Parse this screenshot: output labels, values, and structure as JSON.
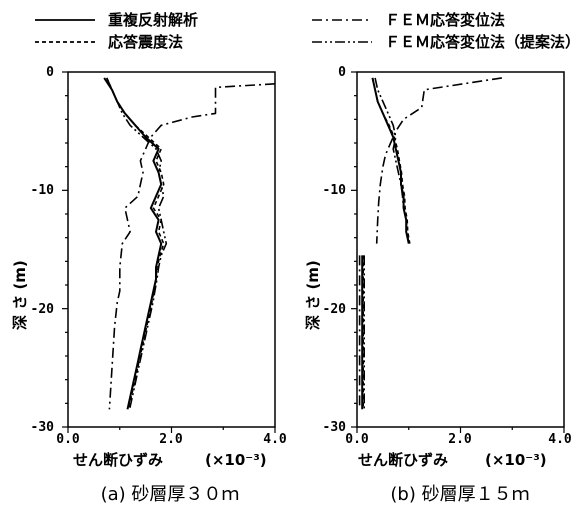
{
  "legend": {
    "items": [
      {
        "label": "重複反射解析",
        "style": "solid"
      },
      {
        "label": "ＦＥＭ応答変位法",
        "style": "dashdot"
      },
      {
        "label": "応答震度法",
        "style": "dashed"
      },
      {
        "label": "ＦＥＭ応答変位法（提案法）",
        "style": "dashdotdot"
      }
    ]
  },
  "chart_data": [
    {
      "type": "line",
      "caption": "(a) 砂層厚３０ｍ",
      "xlabel": "せん断ひずみ",
      "xunit": "(×10⁻³)",
      "ylabel": "深 さ (m)",
      "xlim": [
        0,
        4
      ],
      "ylim": [
        -30,
        0
      ],
      "xticks": [
        "0.0",
        "2.0",
        "4.0"
      ],
      "yticks": [
        "0",
        "-10",
        "-20",
        "-30"
      ],
      "series": [
        {
          "style": "solid",
          "points": [
            [
              0.7,
              -0.5
            ],
            [
              0.85,
              -1.5
            ],
            [
              0.95,
              -2.5
            ],
            [
              1.1,
              -3.5
            ],
            [
              1.3,
              -4.5
            ],
            [
              1.5,
              -5.5
            ],
            [
              1.75,
              -6.5
            ],
            [
              1.65,
              -7.5
            ],
            [
              1.75,
              -8.5
            ],
            [
              1.8,
              -9.5
            ],
            [
              1.7,
              -10.5
            ],
            [
              1.6,
              -11.5
            ],
            [
              1.75,
              -12.5
            ],
            [
              1.7,
              -13.5
            ],
            [
              1.8,
              -14.5
            ],
            [
              1.75,
              -15.5
            ],
            [
              1.7,
              -16.5
            ],
            [
              1.7,
              -17.5
            ],
            [
              1.65,
              -18.5
            ],
            [
              1.6,
              -19.5
            ],
            [
              1.55,
              -20.5
            ],
            [
              1.5,
              -21.5
            ],
            [
              1.45,
              -22.5
            ],
            [
              1.4,
              -23.5
            ],
            [
              1.35,
              -24.5
            ],
            [
              1.3,
              -25.5
            ],
            [
              1.25,
              -26.5
            ],
            [
              1.2,
              -27.5
            ],
            [
              1.15,
              -28.5
            ]
          ]
        },
        {
          "style": "dashed",
          "points": [
            [
              0.75,
              -0.5
            ],
            [
              0.85,
              -1.5
            ],
            [
              0.95,
              -2.5
            ],
            [
              1.1,
              -3.5
            ],
            [
              1.3,
              -4.5
            ],
            [
              1.55,
              -5.5
            ],
            [
              1.8,
              -6.5
            ],
            [
              1.7,
              -7.5
            ],
            [
              1.8,
              -8.5
            ],
            [
              1.85,
              -9.5
            ],
            [
              1.75,
              -10.5
            ],
            [
              1.65,
              -11.5
            ],
            [
              1.8,
              -12.5
            ],
            [
              1.75,
              -13.5
            ],
            [
              1.85,
              -14.5
            ],
            [
              1.78,
              -15.5
            ],
            [
              1.72,
              -16.5
            ],
            [
              1.7,
              -17.5
            ],
            [
              1.66,
              -18.5
            ],
            [
              1.62,
              -19.5
            ],
            [
              1.57,
              -20.5
            ],
            [
              1.52,
              -21.5
            ],
            [
              1.47,
              -22.5
            ],
            [
              1.42,
              -23.5
            ],
            [
              1.37,
              -24.5
            ],
            [
              1.32,
              -25.5
            ],
            [
              1.27,
              -26.5
            ],
            [
              1.22,
              -27.5
            ],
            [
              1.17,
              -28.5
            ]
          ]
        },
        {
          "style": "dashdot",
          "points": [
            [
              4.0,
              -1.0
            ],
            [
              2.85,
              -1.3
            ],
            [
              2.85,
              -3.5
            ],
            [
              2.4,
              -3.8
            ],
            [
              1.8,
              -4.5
            ],
            [
              1.6,
              -5.5
            ],
            [
              1.5,
              -6.5
            ],
            [
              1.4,
              -7.5
            ],
            [
              1.45,
              -8.5
            ],
            [
              1.4,
              -9.5
            ],
            [
              1.35,
              -10.5
            ],
            [
              1.1,
              -11.5
            ],
            [
              1.15,
              -12.5
            ],
            [
              1.2,
              -13.5
            ],
            [
              1.05,
              -14.5
            ],
            [
              1.0,
              -16.5
            ],
            [
              1.0,
              -18.5
            ],
            [
              0.95,
              -19.5
            ],
            [
              0.9,
              -21.5
            ],
            [
              0.85,
              -25.0
            ],
            [
              0.8,
              -28.5
            ]
          ]
        },
        {
          "style": "dashdotdot",
          "points": [
            [
              0.75,
              -0.5
            ],
            [
              0.85,
              -1.5
            ],
            [
              0.95,
              -2.5
            ],
            [
              1.05,
              -3.5
            ],
            [
              1.2,
              -4.5
            ],
            [
              1.45,
              -5.5
            ],
            [
              1.7,
              -6.5
            ],
            [
              1.8,
              -7.5
            ],
            [
              1.75,
              -8.5
            ],
            [
              1.8,
              -9.5
            ],
            [
              1.85,
              -10.5
            ],
            [
              1.75,
              -11.5
            ],
            [
              1.8,
              -12.5
            ],
            [
              1.85,
              -13.5
            ],
            [
              1.9,
              -14.5
            ],
            [
              1.8,
              -15.5
            ],
            [
              1.75,
              -16.5
            ],
            [
              1.72,
              -17.5
            ],
            [
              1.68,
              -18.5
            ],
            [
              1.64,
              -19.5
            ],
            [
              1.59,
              -20.5
            ],
            [
              1.54,
              -21.5
            ],
            [
              1.49,
              -22.5
            ],
            [
              1.44,
              -23.5
            ],
            [
              1.39,
              -24.5
            ],
            [
              1.34,
              -25.5
            ],
            [
              1.29,
              -26.5
            ],
            [
              1.24,
              -27.5
            ],
            [
              1.19,
              -28.5
            ]
          ]
        }
      ]
    },
    {
      "type": "line",
      "caption": "(b) 砂層厚１５ｍ",
      "xlabel": "せん断ひずみ",
      "xunit": "(×10⁻³)",
      "ylabel": "深 さ (m)",
      "xlim": [
        0,
        4
      ],
      "ylim": [
        -30,
        0
      ],
      "xticks": [
        "0.0",
        "2.0",
        "4.0"
      ],
      "yticks": [
        "0",
        "-10",
        "-20",
        "-30"
      ],
      "series": [
        {
          "style": "solid",
          "points": [
            [
              0.3,
              -0.5
            ],
            [
              0.35,
              -1.5
            ],
            [
              0.4,
              -2.5
            ],
            [
              0.5,
              -3.5
            ],
            [
              0.6,
              -4.5
            ],
            [
              0.7,
              -5.5
            ],
            [
              0.75,
              -6.5
            ],
            [
              0.8,
              -7.5
            ],
            [
              0.85,
              -8.5
            ],
            [
              0.85,
              -9.5
            ],
            [
              0.9,
              -10.5
            ],
            [
              0.9,
              -11.5
            ],
            [
              0.95,
              -12.5
            ],
            [
              0.95,
              -13.5
            ],
            [
              1.0,
              -14.5
            ]
          ]
        },
        {
          "style": "dashed",
          "points": [
            [
              0.3,
              -0.5
            ],
            [
              0.35,
              -1.5
            ],
            [
              0.4,
              -2.5
            ],
            [
              0.5,
              -3.5
            ],
            [
              0.62,
              -4.5
            ],
            [
              0.72,
              -5.5
            ],
            [
              0.78,
              -6.5
            ],
            [
              0.82,
              -7.5
            ],
            [
              0.86,
              -8.5
            ],
            [
              0.88,
              -9.5
            ],
            [
              0.92,
              -10.5
            ],
            [
              0.93,
              -11.5
            ],
            [
              0.97,
              -12.5
            ],
            [
              0.98,
              -13.5
            ],
            [
              1.02,
              -14.5
            ]
          ]
        },
        {
          "style": "dashdot",
          "points": [
            [
              2.8,
              -0.5
            ],
            [
              1.3,
              -1.5
            ],
            [
              1.25,
              -3.0
            ],
            [
              0.9,
              -4.0
            ],
            [
              0.75,
              -5.0
            ],
            [
              0.65,
              -6.0
            ],
            [
              0.55,
              -7.0
            ],
            [
              0.5,
              -8.0
            ],
            [
              0.45,
              -9.5
            ],
            [
              0.42,
              -11.0
            ],
            [
              0.4,
              -12.5
            ],
            [
              0.38,
              -14.5
            ]
          ]
        },
        {
          "style": "dashdotdot",
          "points": [
            [
              0.35,
              -0.5
            ],
            [
              0.4,
              -1.5
            ],
            [
              0.5,
              -2.5
            ],
            [
              0.6,
              -3.5
            ],
            [
              0.7,
              -4.5
            ],
            [
              0.75,
              -5.5
            ],
            [
              0.7,
              -6.5
            ],
            [
              0.75,
              -7.5
            ],
            [
              0.8,
              -8.5
            ],
            [
              0.85,
              -9.5
            ],
            [
              0.88,
              -10.5
            ],
            [
              0.9,
              -11.5
            ],
            [
              0.95,
              -12.5
            ],
            [
              0.97,
              -13.5
            ],
            [
              1.0,
              -14.5
            ]
          ]
        },
        {
          "style": "solid",
          "points": [
            [
              0.1,
              -15.5
            ],
            [
              0.1,
              -28.5
            ]
          ]
        },
        {
          "style": "dashed",
          "points": [
            [
              0.12,
              -15.5
            ],
            [
              0.12,
              -28.5
            ]
          ]
        },
        {
          "style": "dashdot",
          "points": [
            [
              0.05,
              -15.5
            ],
            [
              0.05,
              -28.5
            ]
          ]
        },
        {
          "style": "dashdotdot",
          "points": [
            [
              0.14,
              -15.5
            ],
            [
              0.14,
              -28.5
            ]
          ]
        }
      ]
    }
  ]
}
